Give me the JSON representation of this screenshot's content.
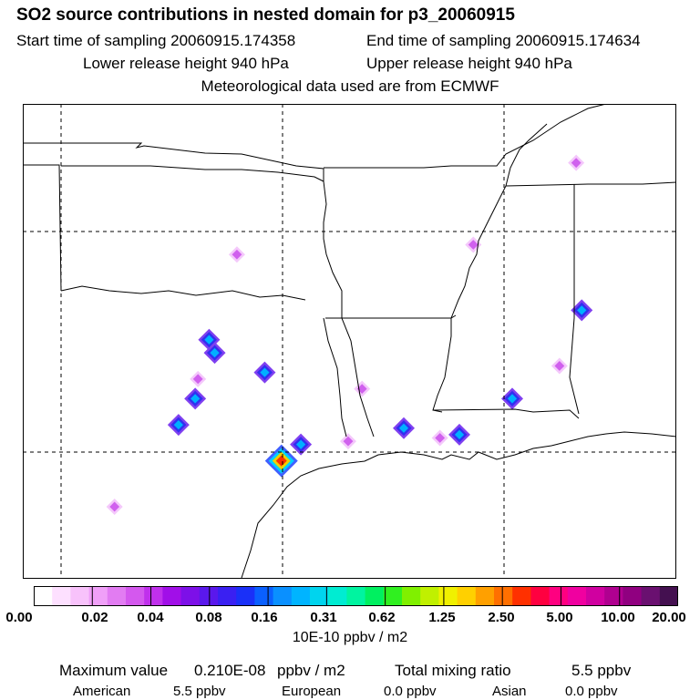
{
  "header": {
    "title": "SO2 source contributions in nested domain for p3_20060915",
    "start_time": "Start time of sampling 20060915.174358",
    "end_time": "End time of sampling 20060915.174634",
    "lower_height": "Lower release height  940 hPa",
    "upper_height": "Upper release height  940 hPa",
    "met_source": "Meteorological data used are from ECMWF"
  },
  "legend": {
    "colors": [
      "#ffffff",
      "#fde0ff",
      "#f8c2fb",
      "#f0a0f8",
      "#e27cf2",
      "#d458ee",
      "#c030ec",
      "#a10fe8",
      "#7d10e8",
      "#5a18ec",
      "#3a20f2",
      "#1a30f8",
      "#0a60ff",
      "#0a90ff",
      "#00b4ff",
      "#00d4ee",
      "#00ecd2",
      "#00f4a0",
      "#00f060",
      "#30f020",
      "#80f000",
      "#c0f000",
      "#f0f000",
      "#ffd000",
      "#ffa000",
      "#ff7000",
      "#ff3000",
      "#ff0040",
      "#ff0080",
      "#f000a0",
      "#d000a0",
      "#b00090",
      "#900080",
      "#6a1070",
      "#441050"
    ],
    "ticks": [
      "0.00",
      "0.02",
      "0.04",
      "0.08",
      "0.16",
      "0.31",
      "0.62",
      "1.25",
      "2.50",
      "5.00",
      "10.00",
      "20.00"
    ],
    "units": "10E-10 ppbv / m2"
  },
  "stats": {
    "max_label": "Maximum value",
    "max_value": "0.210E-08",
    "max_units": "ppbv / m2",
    "total_label": "Total mixing ratio",
    "total_value": "5.5 ppbv"
  },
  "regions": {
    "american_label": "American",
    "american_value": "5.5 ppbv",
    "european_label": "European",
    "european_value": "0.0 ppbv",
    "asian_label": "Asian",
    "asian_value": "0.0 ppbv"
  },
  "map": {
    "plumes": [
      {
        "lon": -95.2,
        "lat": 29.6,
        "level": 4
      },
      {
        "lon": -94.5,
        "lat": 30.1,
        "level": 2
      },
      {
        "lon": -97.6,
        "lat": 32.9,
        "level": 2
      },
      {
        "lon": -95.8,
        "lat": 32.3,
        "level": 2
      },
      {
        "lon": -98.3,
        "lat": 31.5,
        "level": 2
      },
      {
        "lon": -98.9,
        "lat": 30.7,
        "level": 2
      },
      {
        "lon": -88.8,
        "lat": 30.4,
        "level": 2
      },
      {
        "lon": -86.9,
        "lat": 31.5,
        "level": 2
      },
      {
        "lon": -84.4,
        "lat": 34.2,
        "level": 2
      },
      {
        "lon": -90.8,
        "lat": 30.6,
        "level": 2
      },
      {
        "lon": -89.5,
        "lat": 30.3,
        "level": 1
      },
      {
        "lon": -92.8,
        "lat": 30.2,
        "level": 1
      },
      {
        "lon": -97.8,
        "lat": 33.3,
        "level": 2
      },
      {
        "lon": -98.2,
        "lat": 32.1,
        "level": 1
      },
      {
        "lon": -96.8,
        "lat": 35.9,
        "level": 1
      },
      {
        "lon": -92.3,
        "lat": 31.8,
        "level": 1
      },
      {
        "lon": -101.2,
        "lat": 28.2,
        "level": 1
      },
      {
        "lon": -88.3,
        "lat": 36.2,
        "level": 1
      },
      {
        "lon": -85.2,
        "lat": 32.5,
        "level": 1
      },
      {
        "lon": -84.6,
        "lat": 38.7,
        "level": 1
      }
    ]
  }
}
